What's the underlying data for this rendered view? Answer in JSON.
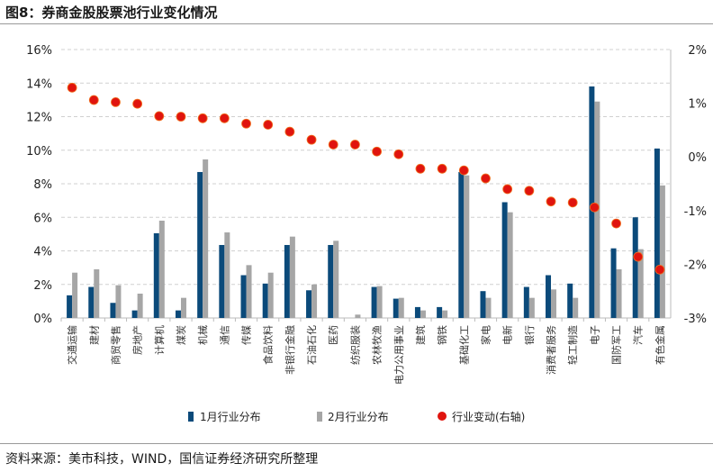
{
  "title": "图8：券商金股股票池行业变化情况",
  "source": "资料来源：美市科技，WIND，国信证券经济研究所整理",
  "chart_data": {
    "type": "bar",
    "title": "",
    "categories": [
      "交通运输",
      "建材",
      "商贸零售",
      "房地产",
      "计算机",
      "煤炭",
      "机械",
      "通信",
      "传媒",
      "食品饮料",
      "非银行金融",
      "石油石化",
      "医药",
      "纺织服装",
      "农林牧渔",
      "电力公用事业",
      "建筑",
      "钢铁",
      "基础化工",
      "家电",
      "电新",
      "银行",
      "消费者服务",
      "轻工制造",
      "电子",
      "国防军工",
      "汽车",
      "有色金属"
    ],
    "series": [
      {
        "name": "1月行业分布",
        "type": "bar",
        "axis": "left",
        "color": "#0b4a7a",
        "values": [
          1.35,
          1.85,
          0.9,
          0.45,
          5.05,
          0.45,
          8.7,
          4.35,
          2.55,
          2.05,
          4.35,
          1.65,
          4.35,
          0,
          1.85,
          1.15,
          0.65,
          0.65,
          8.7,
          1.6,
          6.9,
          1.85,
          2.55,
          2.05,
          13.8,
          4.15,
          6.0,
          10.1
        ]
      },
      {
        "name": "2月行业分布",
        "type": "bar",
        "axis": "left",
        "color": "#a6a6a6",
        "values": [
          2.7,
          2.9,
          1.95,
          1.45,
          5.8,
          1.2,
          9.45,
          5.1,
          3.15,
          2.7,
          4.85,
          2.0,
          4.6,
          0.2,
          1.9,
          1.2,
          0.45,
          0.45,
          8.5,
          1.2,
          6.3,
          1.2,
          1.7,
          1.2,
          12.9,
          2.9,
          4.1,
          7.9
        ]
      },
      {
        "name": "行业变动(右轴)",
        "type": "scatter",
        "axis": "right",
        "color": "#e0140e",
        "values": [
          1.29,
          1.06,
          1.02,
          0.99,
          0.76,
          0.75,
          0.72,
          0.72,
          0.62,
          0.6,
          0.47,
          0.32,
          0.23,
          0.23,
          0.1,
          0.05,
          -0.22,
          -0.22,
          -0.25,
          -0.4,
          -0.6,
          -0.63,
          -0.83,
          -0.85,
          -0.94,
          -1.24,
          -1.86,
          -2.1
        ]
      }
    ],
    "y_left": {
      "range": [
        0,
        16
      ],
      "ticks": [
        "0%",
        "2%",
        "4%",
        "6%",
        "8%",
        "10%",
        "12%",
        "14%",
        "16%"
      ]
    },
    "y_right": {
      "range": [
        -3,
        2
      ],
      "ticks": [
        "-3%",
        "-2%",
        "-1%",
        "0%",
        "1%",
        "2%"
      ]
    },
    "grid": true,
    "legend_placement": "bottom"
  }
}
